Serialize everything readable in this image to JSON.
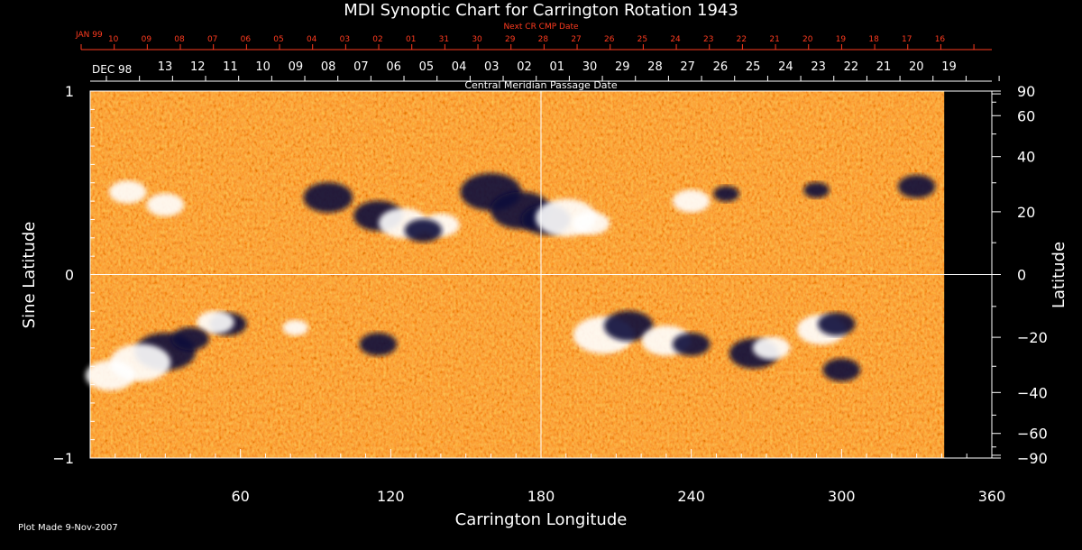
{
  "chart_data": {
    "type": "heatmap",
    "title": "MDI Synoptic Chart for Carrington Rotation 1943",
    "top_axis_title": "Next CR CMP Date",
    "top_month_label": "JAN 99",
    "top_ticks": [
      "10",
      "09",
      "08",
      "07",
      "06",
      "05",
      "04",
      "03",
      "02",
      "01",
      "31",
      "30",
      "29",
      "28",
      "27",
      "26",
      "25",
      "24",
      "23",
      "22",
      "21",
      "20",
      "19",
      "18",
      "17",
      "16"
    ],
    "date_axis_title": "Central Meridian Passage Date",
    "date_month_label": "DEC 98",
    "date_ticks": [
      "13",
      "12",
      "11",
      "10",
      "09",
      "08",
      "07",
      "06",
      "05",
      "04",
      "03",
      "02",
      "01",
      "30",
      "29",
      "28",
      "27",
      "26",
      "25",
      "24",
      "23",
      "22",
      "21",
      "20",
      "19"
    ],
    "xlabel": "Carrington Longitude",
    "xlim": [
      0,
      360
    ],
    "x_ticks": [
      "60",
      "120",
      "180",
      "240",
      "300",
      "360"
    ],
    "ylabel_left": "Sine Latitude",
    "ylim": [
      -1,
      1
    ],
    "y_ticks_left": [
      "1",
      "0",
      "−1"
    ],
    "ylabel_right": "Latitude",
    "y_ticks_right": [
      "90",
      "60",
      "40",
      "20",
      "0",
      "−20",
      "−40",
      "−60",
      "−90"
    ],
    "data_extent_longitude": 341,
    "crosshair": {
      "longitude": 180,
      "sine_latitude": 0
    },
    "colors": {
      "background": "#e8501a",
      "positive": "#ffffff",
      "negative": "#0a0a3a",
      "axes": "#ffffff",
      "secondary_axis": "#ff3b1f"
    },
    "features": [
      {
        "lon": 95,
        "sinlat": 0.42,
        "polarity": "negative",
        "size": 3
      },
      {
        "lon": 115,
        "sinlat": 0.32,
        "polarity": "negative",
        "size": 3
      },
      {
        "lon": 125,
        "sinlat": 0.28,
        "polarity": "positive",
        "size": 3
      },
      {
        "lon": 140,
        "sinlat": 0.27,
        "polarity": "positive",
        "size": 2
      },
      {
        "lon": 133,
        "sinlat": 0.24,
        "polarity": "negative",
        "size": 2
      },
      {
        "lon": 160,
        "sinlat": 0.45,
        "polarity": "negative",
        "size": 4
      },
      {
        "lon": 172,
        "sinlat": 0.35,
        "polarity": "negative",
        "size": 4
      },
      {
        "lon": 182,
        "sinlat": 0.3,
        "polarity": "negative",
        "size": 3
      },
      {
        "lon": 190,
        "sinlat": 0.31,
        "polarity": "positive",
        "size": 4
      },
      {
        "lon": 200,
        "sinlat": 0.28,
        "polarity": "positive",
        "size": 2
      },
      {
        "lon": 15,
        "sinlat": 0.45,
        "polarity": "positive",
        "size": 2
      },
      {
        "lon": 30,
        "sinlat": 0.38,
        "polarity": "positive",
        "size": 2
      },
      {
        "lon": 55,
        "sinlat": -0.27,
        "polarity": "negative",
        "size": 2
      },
      {
        "lon": 50,
        "sinlat": -0.26,
        "polarity": "positive",
        "size": 2
      },
      {
        "lon": 30,
        "sinlat": -0.42,
        "polarity": "negative",
        "size": 4
      },
      {
        "lon": 20,
        "sinlat": -0.48,
        "polarity": "positive",
        "size": 4
      },
      {
        "lon": 8,
        "sinlat": -0.55,
        "polarity": "positive",
        "size": 3
      },
      {
        "lon": 40,
        "sinlat": -0.35,
        "polarity": "negative",
        "size": 2
      },
      {
        "lon": 82,
        "sinlat": -0.29,
        "polarity": "positive",
        "size": 1
      },
      {
        "lon": 115,
        "sinlat": -0.38,
        "polarity": "negative",
        "size": 2
      },
      {
        "lon": 205,
        "sinlat": -0.33,
        "polarity": "positive",
        "size": 4
      },
      {
        "lon": 215,
        "sinlat": -0.28,
        "polarity": "negative",
        "size": 3
      },
      {
        "lon": 230,
        "sinlat": -0.36,
        "polarity": "positive",
        "size": 3
      },
      {
        "lon": 240,
        "sinlat": -0.38,
        "polarity": "negative",
        "size": 2
      },
      {
        "lon": 265,
        "sinlat": -0.43,
        "polarity": "negative",
        "size": 3
      },
      {
        "lon": 272,
        "sinlat": -0.4,
        "polarity": "positive",
        "size": 2
      },
      {
        "lon": 292,
        "sinlat": -0.3,
        "polarity": "positive",
        "size": 3
      },
      {
        "lon": 298,
        "sinlat": -0.27,
        "polarity": "negative",
        "size": 2
      },
      {
        "lon": 300,
        "sinlat": -0.52,
        "polarity": "negative",
        "size": 2
      },
      {
        "lon": 240,
        "sinlat": 0.4,
        "polarity": "positive",
        "size": 2
      },
      {
        "lon": 254,
        "sinlat": 0.44,
        "polarity": "negative",
        "size": 1
      },
      {
        "lon": 290,
        "sinlat": 0.46,
        "polarity": "negative",
        "size": 1
      },
      {
        "lon": 330,
        "sinlat": 0.48,
        "polarity": "negative",
        "size": 2
      }
    ]
  },
  "footer": {
    "plot_made": "Plot Made  9-Nov-2007"
  }
}
